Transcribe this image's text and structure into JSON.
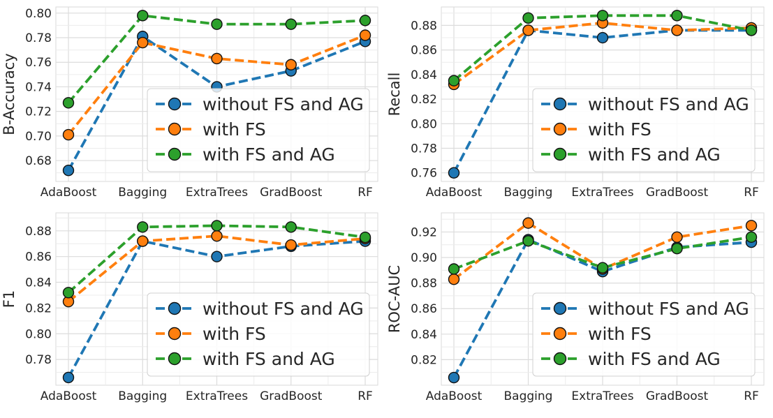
{
  "chart_data": [
    {
      "type": "line",
      "categories": [
        "AdaBoost",
        "Bagging",
        "ExtraTrees",
        "GradBoost",
        "RF"
      ],
      "ylabel": "B-Accuracy",
      "xlabel": "",
      "ylim": [
        0.663,
        0.805
      ],
      "yticks": [
        "0.68",
        "0.70",
        "0.72",
        "0.74",
        "0.76",
        "0.78",
        "0.80"
      ],
      "series": [
        {
          "name": "without FS and AG",
          "color": "#1f77b4",
          "values": [
            0.672,
            0.781,
            0.74,
            0.753,
            0.777
          ]
        },
        {
          "name": "with FS",
          "color": "#ff7f0e",
          "values": [
            0.701,
            0.776,
            0.763,
            0.758,
            0.782
          ]
        },
        {
          "name": "with FS and AG",
          "color": "#2ca02c",
          "values": [
            0.727,
            0.798,
            0.791,
            0.791,
            0.794
          ]
        }
      ],
      "legend": "lower-right",
      "grid": true
    },
    {
      "type": "line",
      "categories": [
        "AdaBoost",
        "Bagging",
        "ExtraTrees",
        "GradBoost",
        "RF"
      ],
      "ylabel": "Recall",
      "xlabel": "",
      "ylim": [
        0.753,
        0.895
      ],
      "yticks": [
        "0.76",
        "0.78",
        "0.80",
        "0.82",
        "0.84",
        "0.86",
        "0.88"
      ],
      "series": [
        {
          "name": "without FS and AG",
          "color": "#1f77b4",
          "values": [
            0.76,
            0.876,
            0.87,
            0.876,
            0.876
          ]
        },
        {
          "name": "with FS",
          "color": "#ff7f0e",
          "values": [
            0.832,
            0.876,
            0.882,
            0.876,
            0.878
          ]
        },
        {
          "name": "with FS and AG",
          "color": "#2ca02c",
          "values": [
            0.835,
            0.886,
            0.888,
            0.888,
            0.876
          ]
        }
      ],
      "legend": "lower-right",
      "grid": true
    },
    {
      "type": "line",
      "categories": [
        "AdaBoost",
        "Bagging",
        "ExtraTrees",
        "GradBoost",
        "RF"
      ],
      "ylabel": "F1",
      "xlabel": "",
      "ylim": [
        0.76,
        0.894
      ],
      "yticks": [
        "0.78",
        "0.80",
        "0.82",
        "0.84",
        "0.86",
        "0.88"
      ],
      "series": [
        {
          "name": "without FS and AG",
          "color": "#1f77b4",
          "values": [
            0.766,
            0.872,
            0.86,
            0.868,
            0.872
          ]
        },
        {
          "name": "with FS",
          "color": "#ff7f0e",
          "values": [
            0.825,
            0.872,
            0.876,
            0.869,
            0.874
          ]
        },
        {
          "name": "with FS and AG",
          "color": "#2ca02c",
          "values": [
            0.832,
            0.883,
            0.884,
            0.883,
            0.875
          ]
        }
      ],
      "legend": "lower-right",
      "grid": true
    },
    {
      "type": "line",
      "categories": [
        "AdaBoost",
        "Bagging",
        "ExtraTrees",
        "GradBoost",
        "RF"
      ],
      "ylabel": "ROC-AUC",
      "xlabel": "",
      "ylim": [
        0.8,
        0.935
      ],
      "yticks": [
        "0.82",
        "0.84",
        "0.86",
        "0.88",
        "0.90",
        "0.92"
      ],
      "series": [
        {
          "name": "without FS and AG",
          "color": "#1f77b4",
          "values": [
            0.806,
            0.914,
            0.889,
            0.908,
            0.912
          ]
        },
        {
          "name": "with FS",
          "color": "#ff7f0e",
          "values": [
            0.883,
            0.927,
            0.891,
            0.916,
            0.925
          ]
        },
        {
          "name": "with FS and AG",
          "color": "#2ca02c",
          "values": [
            0.891,
            0.913,
            0.892,
            0.907,
            0.916
          ]
        }
      ],
      "legend": "lower-right",
      "grid": true
    }
  ]
}
